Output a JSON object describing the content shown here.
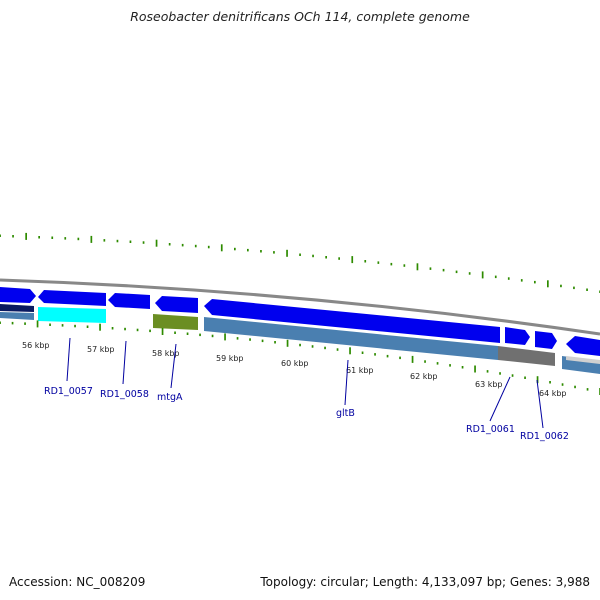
{
  "title": "Roseobacter denitrificans OCh 114, complete genome",
  "footer": {
    "accession": "Accession: NC_008209",
    "summary": "Topology: circular; Length: 4,133,097 bp; Genes: 3,988"
  },
  "kbp_labels": [
    "56 kbp",
    "57 kbp",
    "58 kbp",
    "59 kbp",
    "60 kbp",
    "61 kbp",
    "62 kbp",
    "63 kbp",
    "64 kbp"
  ],
  "gene_labels": [
    "RD1_0057",
    "RD1_0058",
    "mtgA",
    "gltB",
    "RD1_0061",
    "RD1_0062"
  ],
  "colors": {
    "cds": "#0000ee",
    "gene": "#4a7fb0",
    "cyan": "#00ffff",
    "olive": "#6b8e23",
    "grey": "#707070",
    "tick": "#2e8b00",
    "backbone": "#888888"
  }
}
